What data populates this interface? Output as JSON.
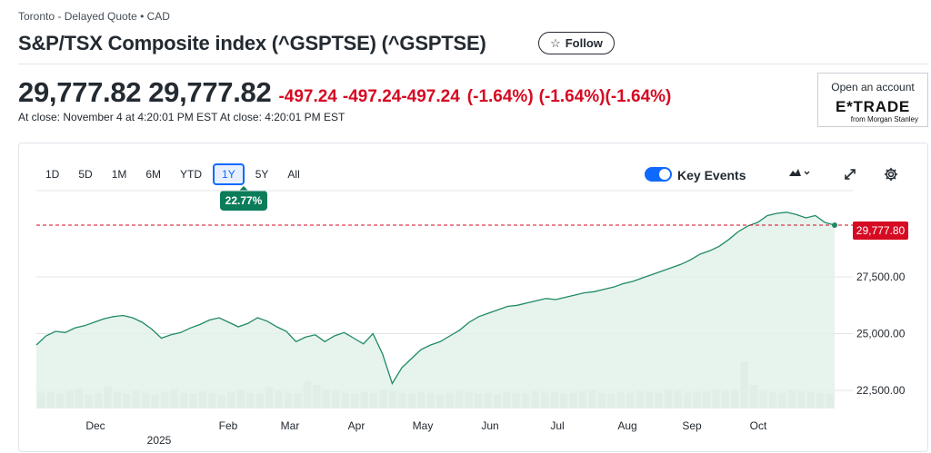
{
  "header": {
    "exchange_line": "Toronto - Delayed Quote • CAD",
    "title": "S&P/TSX Composite index (^GSPTSE) (^GSPTSE)",
    "follow_label": "Follow"
  },
  "quote": {
    "price": "29,777.82",
    "price_repeat": "29,777.82",
    "change": "-497.24",
    "change_repeat_1": "-497.24",
    "change_repeat_2": "-497.24",
    "change_pct": "(-1.64%)",
    "change_pct_repeat_1": "(-1.64%)",
    "change_pct_repeat_2": "(-1.64%)",
    "close_info": "At close: November 4 at 4:20:01 PM EST At close: 4:20:01 PM EST"
  },
  "ad": {
    "cta": "Open an account",
    "brand": "E*TRADE",
    "sub": "from Morgan Stanley"
  },
  "chart": {
    "ranges": [
      "1D",
      "5D",
      "1M",
      "6M",
      "YTD",
      "1Y",
      "5Y",
      "All"
    ],
    "active_range": "1Y",
    "range_change": "22.77%",
    "key_events_label": "Key Events",
    "key_events_on": true,
    "current_price_label": "29,777.80",
    "colors": {
      "line": "#1f8a63",
      "fill": "#e3f1ea",
      "down": "#d60a22",
      "active": "#0f69ff"
    }
  },
  "chart_data": {
    "type": "area",
    "x_labels": [
      "Dec",
      "Feb",
      "Mar",
      "Apr",
      "May",
      "Jun",
      "Jul",
      "Aug",
      "Sep",
      "Oct"
    ],
    "x_sublabel": "2025",
    "y_ticks": [
      22500,
      25000,
      27500
    ],
    "y_tick_labels": [
      "22,500.00",
      "25,000.00",
      "27,500.00"
    ],
    "ylim": [
      21700,
      30900
    ],
    "reference_line": 29777.8,
    "grid": true,
    "series": [
      {
        "values": [
          24500,
          24900,
          25100,
          25050,
          25250,
          25350,
          25500,
          25650,
          25750,
          25800,
          25700,
          25500,
          25200,
          24800,
          24950,
          25050,
          25250,
          25400,
          25600,
          25700,
          25500,
          25300,
          25450,
          25700,
          25550,
          25300,
          25100,
          24650,
          24850,
          24950,
          24650,
          24900,
          25050,
          24800,
          24550,
          25000,
          24100,
          22800,
          23500,
          23900,
          24300,
          24500,
          24650,
          24900,
          25150,
          25500,
          25750,
          25900,
          26050,
          26200,
          26250,
          26350,
          26450,
          26550,
          26500,
          26600,
          26700,
          26800,
          26850,
          26950,
          27050,
          27200,
          27300,
          27450,
          27600,
          27750,
          27900,
          28050,
          28250,
          28500,
          28650,
          28850,
          29150,
          29500,
          29750,
          29900,
          30200,
          30300,
          30350,
          30250,
          30100,
          30200,
          29900,
          29780
        ]
      }
    ],
    "volume": [
      40,
      42,
      38,
      45,
      50,
      36,
      40,
      55,
      42,
      38,
      44,
      40,
      36,
      42,
      48,
      40,
      38,
      44,
      40,
      36,
      42,
      46,
      40,
      38,
      55,
      44,
      40,
      38,
      70,
      60,
      48,
      44,
      40,
      38,
      42,
      40,
      48,
      44,
      40,
      38,
      42,
      40,
      36,
      40,
      44,
      42,
      38,
      40,
      36,
      42,
      40,
      38,
      44,
      40,
      42,
      38,
      40,
      44,
      46,
      40,
      38,
      42,
      40,
      44,
      42,
      40,
      48,
      46,
      40,
      42,
      44,
      50,
      46,
      48,
      120,
      60,
      44,
      42,
      40,
      46,
      44,
      42,
      40,
      38
    ]
  }
}
